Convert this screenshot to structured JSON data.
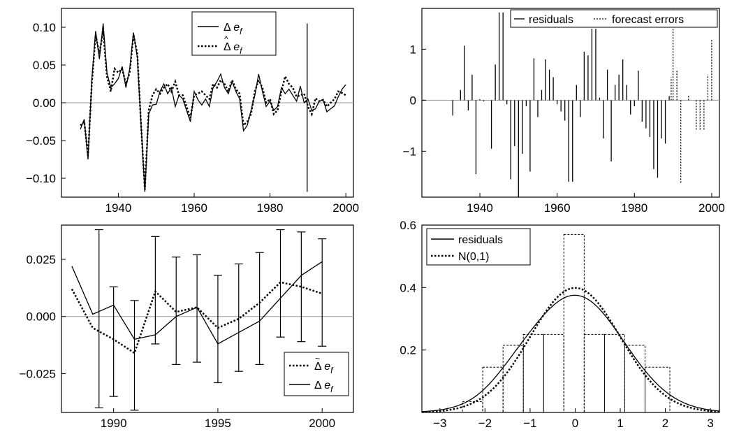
{
  "charts": [
    {
      "id": "tl",
      "type": "line",
      "xlim": [
        1925,
        2002
      ],
      "ylim": [
        -0.125,
        0.125
      ],
      "xticks": [
        1940,
        1960,
        1980,
        2000
      ],
      "yticks": [
        -0.1,
        -0.05,
        0.0,
        0.05,
        0.1
      ],
      "ytick_labels": [
        "−0.10",
        "−0.05",
        "0.00",
        "0.05",
        "0.10"
      ],
      "zero_line": true,
      "vline": {
        "x": 1989.8,
        "y1": -0.118,
        "y2": 0.105
      },
      "legend": [
        "Δ e_f",
        "Δ̂ e_f"
      ],
      "series": [
        {
          "style": "solid",
          "x": [
            1930,
            1931,
            1932,
            1933,
            1934,
            1935,
            1936,
            1937,
            1938,
            1939,
            1940,
            1941,
            1942,
            1943,
            1944,
            1945,
            1946,
            1947,
            1948,
            1949,
            1950,
            1951,
            1952,
            1953,
            1954,
            1955,
            1956,
            1957,
            1958,
            1959,
            1960,
            1961,
            1962,
            1963,
            1964,
            1965,
            1966,
            1967,
            1968,
            1969,
            1970,
            1971,
            1972,
            1973,
            1974,
            1975,
            1976,
            1977,
            1978,
            1979,
            1980,
            1981,
            1982,
            1983,
            1984,
            1985,
            1986,
            1987,
            1988,
            1989,
            1990,
            1991,
            1992,
            1993,
            1994,
            1995,
            1996,
            1997,
            1998,
            1999,
            2000
          ],
          "y": [
            -0.035,
            -0.022,
            -0.075,
            0.03,
            0.095,
            0.058,
            0.105,
            0.04,
            0.02,
            0.025,
            0.032,
            0.048,
            0.02,
            0.045,
            0.093,
            0.06,
            -0.03,
            -0.118,
            -0.015,
            -0.003,
            -0.002,
            0.015,
            0.025,
            0.012,
            0.02,
            -0.005,
            0.01,
            0.005,
            -0.01,
            -0.025,
            0.015,
            0.004,
            -0.003,
            0.005,
            -0.005,
            0.02,
            0.028,
            0.038,
            0.02,
            0.012,
            0.028,
            0.015,
            0.005,
            -0.037,
            -0.03,
            -0.01,
            0.01,
            0.038,
            0.015,
            -0.005,
            0.002,
            -0.01,
            -0.005,
            0.02,
            0.012,
            0.018,
            0.01,
            0.002,
            0.022,
            0.0,
            0.005,
            -0.01,
            -0.008,
            0.002,
            0.004,
            -0.012,
            -0.008,
            -0.004,
            0.008,
            0.018,
            0.024
          ]
        },
        {
          "style": "dotted",
          "x": [
            1930,
            1931,
            1932,
            1933,
            1934,
            1935,
            1936,
            1937,
            1938,
            1939,
            1940,
            1941,
            1942,
            1943,
            1944,
            1945,
            1946,
            1947,
            1948,
            1949,
            1950,
            1951,
            1952,
            1953,
            1954,
            1955,
            1956,
            1957,
            1958,
            1959,
            1960,
            1961,
            1962,
            1963,
            1964,
            1965,
            1966,
            1967,
            1968,
            1969,
            1970,
            1971,
            1972,
            1973,
            1974,
            1975,
            1976,
            1977,
            1978,
            1979,
            1980,
            1981,
            1982,
            1983,
            1984,
            1985,
            1986,
            1987,
            1988,
            1989,
            1990,
            1991,
            1992,
            1993,
            1994,
            1995,
            1996,
            1997,
            1998,
            1999,
            2000
          ],
          "y": [
            -0.03,
            -0.025,
            -0.07,
            0.025,
            0.09,
            0.065,
            0.095,
            0.035,
            0.015,
            0.045,
            0.04,
            0.045,
            0.025,
            0.04,
            0.09,
            0.065,
            -0.03,
            -0.115,
            -0.01,
            0.01,
            0.018,
            0.012,
            0.02,
            0.025,
            0.015,
            0.028,
            0.01,
            0.01,
            -0.005,
            -0.02,
            0.01,
            0.012,
            0.015,
            0.01,
            0.005,
            0.025,
            0.02,
            0.03,
            0.025,
            0.015,
            0.03,
            0.018,
            0.012,
            -0.03,
            -0.025,
            -0.015,
            0.015,
            0.03,
            0.02,
            0.0,
            0.005,
            -0.015,
            -0.01,
            0.015,
            0.035,
            0.025,
            0.02,
            0.008,
            0.01,
            0.012,
            -0.005,
            -0.015,
            0.006,
            0.002,
            0.004,
            -0.005,
            0.0,
            0.005,
            0.015,
            0.013,
            0.01
          ]
        }
      ]
    },
    {
      "id": "tr",
      "type": "bar",
      "xlim": [
        1925,
        2002
      ],
      "ylim": [
        -1.9,
        1.8
      ],
      "xticks": [
        1940,
        1960,
        1980,
        2000
      ],
      "yticks": [
        -1,
        0,
        1
      ],
      "ytick_labels": [
        "−1",
        "0",
        "1"
      ],
      "zero_line": true,
      "legend": [
        "residuals",
        "forecast errors"
      ],
      "bars": {
        "x": [
          1933,
          1935,
          1936,
          1937,
          1938,
          1939,
          1940,
          1941,
          1942,
          1943,
          1944,
          1945,
          1946,
          1947,
          1948,
          1949,
          1950,
          1951,
          1952,
          1953,
          1954,
          1955,
          1956,
          1957,
          1958,
          1959,
          1960,
          1961,
          1962,
          1963,
          1964,
          1965,
          1966,
          1967,
          1968,
          1969,
          1970,
          1971,
          1972,
          1973,
          1974,
          1975,
          1976,
          1977,
          1978,
          1979,
          1980,
          1981,
          1982,
          1983,
          1984,
          1985,
          1986,
          1987,
          1988,
          1989
        ],
        "y": [
          -0.3,
          0.2,
          1.07,
          -0.2,
          0.5,
          -1.45,
          0.02,
          -0.02,
          0.0,
          -0.95,
          0.7,
          1.72,
          1.72,
          -0.08,
          -1.55,
          -0.9,
          -1.9,
          -1.05,
          -0.12,
          -1.4,
          0.82,
          -0.33,
          0.2,
          0.8,
          0.6,
          0.45,
          -0.08,
          -0.22,
          -0.4,
          -1.6,
          -1.6,
          0.3,
          -0.33,
          0.95,
          0.88,
          1.4,
          1.4,
          0.05,
          -0.75,
          0.6,
          -1.2,
          0.3,
          0.5,
          0.8,
          0.3,
          -0.28,
          -0.12,
          0.58,
          -0.42,
          -0.55,
          -0.72,
          -1.35,
          -1.52,
          -0.75,
          -0.85,
          0.08
        ],
        "fx": [
          1989.5,
          1990,
          1991,
          1992,
          1994,
          1996,
          1997,
          1998,
          1999,
          2000
        ],
        "fy": [
          0.45,
          2.42,
          0.6,
          -1.62,
          0.1,
          -0.58,
          -0.58,
          -0.58,
          0.5,
          1.2
        ]
      }
    },
    {
      "id": "bl",
      "type": "line",
      "xlim": [
        1987.5,
        2001.5
      ],
      "ylim": [
        -0.042,
        0.04
      ],
      "xticks": [
        1990,
        1995,
        2000
      ],
      "yticks": [
        -0.025,
        0.0,
        0.025
      ],
      "ytick_labels": [
        "−0.025",
        "0.000",
        "0.025"
      ],
      "zero_line": true,
      "legend": [
        "Δ̃ e_f",
        "Δ e_f"
      ],
      "series": [
        {
          "style": "solid",
          "x": [
            1988,
            1989,
            1990,
            1991,
            1992,
            1993,
            1994,
            1995,
            1996,
            1997,
            1998,
            1999,
            2000
          ],
          "y": [
            0.022,
            0.001,
            0.005,
            -0.01,
            -0.008,
            0.0,
            0.004,
            -0.012,
            -0.007,
            -0.002,
            0.008,
            0.018,
            0.024
          ]
        },
        {
          "style": "dotted",
          "x": [
            1988,
            1989,
            1990,
            1991,
            1992,
            1993,
            1994,
            1995,
            1996,
            1997,
            1998,
            1999,
            2000
          ],
          "y": [
            0.012,
            -0.005,
            -0.01,
            -0.016,
            0.011,
            0.002,
            0.004,
            -0.005,
            -0.001,
            0.006,
            0.015,
            0.013,
            0.01
          ]
        }
      ],
      "errorbars": {
        "x": [
          1989.3,
          1990,
          1991,
          1992,
          1993,
          1994,
          1995,
          1996,
          1997,
          1998,
          1999,
          2000
        ],
        "lo": [
          -0.04,
          -0.035,
          -0.041,
          -0.012,
          -0.021,
          -0.02,
          -0.029,
          -0.024,
          -0.021,
          -0.009,
          -0.011,
          -0.013
        ],
        "hi": [
          0.038,
          0.013,
          0.007,
          0.035,
          0.026,
          0.027,
          0.018,
          0.023,
          0.028,
          0.038,
          0.037,
          0.034
        ]
      }
    },
    {
      "id": "br",
      "type": "area",
      "xlim": [
        -3.4,
        3.2
      ],
      "ylim": [
        0,
        0.6
      ],
      "xticks": [
        -3,
        -2,
        -1,
        0,
        1,
        2,
        3
      ],
      "xtick_labels": [
        "−3",
        "−2",
        "−1",
        "0",
        "1",
        "2",
        "3"
      ],
      "yticks": [
        0.2,
        0.4,
        0.6
      ],
      "ytick_labels": [
        "0.2",
        "0.4",
        "0.6"
      ],
      "zero_line": false,
      "legend": [
        "residuals",
        "N(0,1)"
      ],
      "hist": {
        "edges": [
          -2.5,
          -2.05,
          -1.6,
          -1.15,
          -0.7,
          -0.25,
          0.2,
          0.65,
          1.1,
          1.55,
          2.1
        ],
        "heights": [
          0.035,
          0.145,
          0.215,
          0.25,
          0.25,
          0.57,
          0.25,
          0.25,
          0.215,
          0.145
        ]
      },
      "density_peak": 0.375,
      "density_sd": 1.08
    }
  ]
}
